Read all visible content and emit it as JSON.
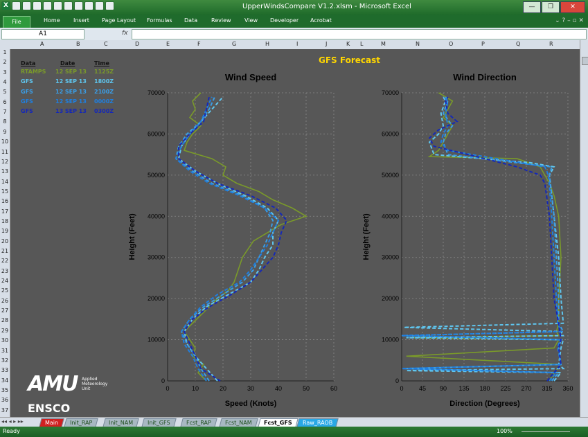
{
  "window": {
    "title": "UpperWindsCompare V1.2.xlsm - Microsoft Excel",
    "close": "✕",
    "minimize": "—",
    "restore": "❐"
  },
  "ribbon": {
    "tabs": [
      "File",
      "Home",
      "Insert",
      "Page Layout",
      "Formulas",
      "Data",
      "Review",
      "View",
      "Developer",
      "Acrobat"
    ]
  },
  "formula_bar": {
    "name_box": "A1",
    "fx": "fx",
    "value": ""
  },
  "columns": [
    "A",
    "B",
    "C",
    "D",
    "E",
    "F",
    "G",
    "H",
    "I",
    "J",
    "K",
    "L",
    "M",
    "N",
    "O",
    "P",
    "Q",
    "R"
  ],
  "rows": [
    "1",
    "2",
    "3",
    "4",
    "5",
    "6",
    "7",
    "8",
    "9",
    "10",
    "11",
    "12",
    "13",
    "14",
    "15",
    "16",
    "17",
    "18",
    "19",
    "20",
    "21",
    "22",
    "23",
    "24",
    "25",
    "26",
    "27",
    "28",
    "29",
    "30",
    "31",
    "32",
    "33",
    "34",
    "35",
    "36",
    "37"
  ],
  "table": {
    "headers": [
      "Data",
      "Date",
      "Time"
    ],
    "rows": [
      {
        "data": "RTAMPS",
        "date": "12 SEP 13",
        "time": "1125Z",
        "color": "#7a9a2a"
      },
      {
        "data": "GFS",
        "date": "12 SEP 13",
        "time": "1800Z",
        "color": "#5fc6f0"
      },
      {
        "data": "GFS",
        "date": "12 SEP 13",
        "time": "2100Z",
        "color": "#3a9ee8"
      },
      {
        "data": "GFS",
        "date": "12 SEP 13",
        "time": "0000Z",
        "color": "#1f7fe0"
      },
      {
        "data": "GFS",
        "date": "13 SEP 13",
        "time": "0300Z",
        "color": "#1428b8"
      }
    ]
  },
  "title": "GFS Forecast",
  "chart_data": [
    {
      "type": "line",
      "title": "Wind Speed",
      "xlabel": "Speed (Knots)",
      "ylabel": "Height (Feet)",
      "xlim": [
        0,
        60
      ],
      "ylim": [
        0,
        70000
      ],
      "xticks": [
        "0",
        "10",
        "20",
        "30",
        "40",
        "50",
        "60"
      ],
      "yticks": [
        "0",
        "10000",
        "20000",
        "30000",
        "40000",
        "50000",
        "60000",
        "70000"
      ],
      "grid": true,
      "series": [
        {
          "color": "#7a9a2a",
          "y": [
            0,
            2000,
            4000,
            6000,
            8000,
            10000,
            12000,
            14000,
            16000,
            18000,
            20000,
            22000,
            24000,
            26000,
            28000,
            30000,
            32000,
            34000,
            36000,
            38000,
            40000,
            42000,
            44000,
            46000,
            48000,
            50000,
            52000,
            54000,
            56000,
            58000,
            60000,
            62000,
            64000,
            66000,
            68000,
            70000
          ],
          "values": [
            14,
            11,
            13,
            9,
            10,
            8,
            6,
            9,
            12,
            15,
            18,
            22,
            24,
            25,
            26,
            27,
            29,
            31,
            36,
            41,
            50,
            45,
            38,
            33,
            25,
            20,
            21,
            16,
            6,
            7,
            9,
            12,
            8,
            10,
            9,
            12
          ]
        },
        {
          "color": "#5fc6f0",
          "y": [
            0,
            3000,
            6000,
            9000,
            12000,
            15000,
            18000,
            21000,
            24000,
            27000,
            30000,
            33000,
            36000,
            39000,
            42000,
            45000,
            48000,
            51000,
            54000,
            57000,
            60000,
            63000,
            66000,
            69000
          ],
          "values": [
            18,
            14,
            10,
            7,
            6,
            9,
            14,
            22,
            30,
            33,
            35,
            38,
            38,
            40,
            36,
            28,
            18,
            10,
            4,
            5,
            8,
            12,
            16,
            20
          ]
        },
        {
          "color": "#3a9ee8",
          "y": [
            0,
            3000,
            6000,
            9000,
            12000,
            15000,
            18000,
            21000,
            24000,
            27000,
            30000,
            33000,
            36000,
            39000,
            42000,
            45000,
            48000,
            51000,
            54000,
            57000,
            60000,
            63000,
            66000,
            69000
          ],
          "values": [
            15,
            12,
            10,
            7,
            5,
            8,
            13,
            20,
            27,
            31,
            33,
            35,
            37,
            38,
            35,
            27,
            16,
            9,
            3,
            4,
            7,
            12,
            15,
            17
          ]
        },
        {
          "color": "#1f7fe0",
          "y": [
            0,
            3000,
            6000,
            9000,
            12000,
            15000,
            18000,
            21000,
            24000,
            27000,
            30000,
            33000,
            36000,
            39000,
            42000,
            45000,
            48000,
            51000,
            54000,
            57000,
            60000,
            63000,
            66000,
            69000
          ],
          "values": [
            14,
            11,
            9,
            6,
            5,
            8,
            12,
            18,
            26,
            30,
            33,
            36,
            38,
            40,
            35,
            26,
            15,
            8,
            3,
            5,
            8,
            12,
            14,
            16
          ]
        },
        {
          "color": "#1428b8",
          "y": [
            0,
            3000,
            6000,
            9000,
            12000,
            15000,
            18000,
            21000,
            24000,
            27000,
            30000,
            33000,
            36000,
            39000,
            42000,
            45000,
            48000,
            51000,
            54000,
            57000,
            60000,
            63000,
            66000,
            69000
          ],
          "values": [
            19,
            12,
            10,
            8,
            6,
            9,
            15,
            23,
            30,
            34,
            38,
            40,
            41,
            43,
            39,
            30,
            18,
            10,
            4,
            4,
            8,
            13,
            14,
            15
          ]
        }
      ]
    },
    {
      "type": "line",
      "title": "Wind Direction",
      "xlabel": "Direction (Degrees)",
      "ylabel": "Height (Feet)",
      "xlim": [
        0,
        360
      ],
      "ylim": [
        0,
        70000
      ],
      "xticks": [
        "0",
        "45",
        "90",
        "135",
        "180",
        "225",
        "270",
        "315",
        "360"
      ],
      "yticks": [
        "0",
        "10000",
        "20000",
        "30000",
        "40000",
        "50000",
        "60000",
        "70000"
      ],
      "grid": true,
      "series": [
        {
          "color": "#7a9a2a",
          "y": [
            0,
            2000,
            4000,
            6000,
            8000,
            10000,
            10500,
            11000,
            12000,
            14000,
            20000,
            30000,
            40000,
            45000,
            48000,
            50000,
            52000,
            54000,
            54500,
            56000,
            58000,
            60000,
            62000,
            64000,
            66000,
            68000,
            70000
          ],
          "values": [
            320,
            330,
            345,
            10,
            330,
            340,
            20,
            340,
            335,
            340,
            340,
            345,
            340,
            330,
            320,
            310,
            300,
            250,
            60,
            80,
            90,
            100,
            110,
            90,
            100,
            110,
            80
          ]
        },
        {
          "color": "#5fc6f0",
          "y": [
            0,
            2000,
            2500,
            3000,
            4000,
            8000,
            10000,
            10500,
            11000,
            12000,
            13000,
            14000,
            20000,
            30000,
            40000,
            50000,
            52000,
            53000,
            55000,
            58000,
            60000,
            62000,
            65000,
            68000,
            69000
          ],
          "values": [
            330,
            345,
            10,
            350,
            340,
            345,
            350,
            10,
            350,
            345,
            5,
            350,
            345,
            340,
            330,
            320,
            330,
            280,
            70,
            60,
            80,
            90,
            85,
            95,
            90
          ]
        },
        {
          "color": "#3a9ee8",
          "y": [
            0,
            2000,
            3000,
            4000,
            8000,
            10000,
            11000,
            12000,
            14000,
            20000,
            30000,
            40000,
            50000,
            52000,
            55000,
            58000,
            60000,
            62000,
            65000,
            68000,
            69000
          ],
          "values": [
            325,
            340,
            5,
            345,
            340,
            345,
            0,
            350,
            340,
            340,
            335,
            330,
            320,
            325,
            100,
            90,
            95,
            110,
            90,
            100,
            95
          ]
        },
        {
          "color": "#1f7fe0",
          "y": [
            0,
            2000,
            3000,
            4000,
            8000,
            10000,
            11000,
            12000,
            14000,
            20000,
            30000,
            40000,
            50000,
            52000,
            56000,
            58000,
            60000,
            62000,
            65000,
            68000,
            69000
          ],
          "values": [
            320,
            335,
            0,
            345,
            338,
            342,
            0,
            345,
            338,
            335,
            330,
            325,
            318,
            310,
            100,
            85,
            90,
            100,
            95,
            100,
            90
          ]
        },
        {
          "color": "#1428b8",
          "y": [
            0,
            2000,
            4000,
            8000,
            10000,
            14000,
            20000,
            30000,
            40000,
            48000,
            50000,
            52000,
            54000,
            57000,
            59000,
            61000,
            63000,
            65000,
            68000,
            69000
          ],
          "values": [
            315,
            330,
            345,
            340,
            345,
            340,
            330,
            325,
            320,
            310,
            300,
            250,
            180,
            70,
            60,
            80,
            120,
            100,
            95,
            100
          ]
        }
      ]
    }
  ],
  "sheet_tabs": [
    {
      "label": "Main",
      "active": false,
      "red": true
    },
    {
      "label": "Init_RAP",
      "active": false
    },
    {
      "label": "Init_NAM",
      "active": false
    },
    {
      "label": "Init_GFS",
      "active": false
    },
    {
      "label": "Fcst_RAP",
      "active": false
    },
    {
      "label": "Fcst_NAM",
      "active": false
    },
    {
      "label": "Fcst_GFS",
      "active": true
    },
    {
      "label": "Raw_RAOB",
      "active": false,
      "blue": true
    }
  ],
  "status": {
    "mode": "Ready",
    "zoom": "100%"
  },
  "logos": {
    "amu": "AMU",
    "amu_sub": [
      "Applied",
      "Meteorology",
      "Unit"
    ],
    "ensco": "ENSCO"
  }
}
